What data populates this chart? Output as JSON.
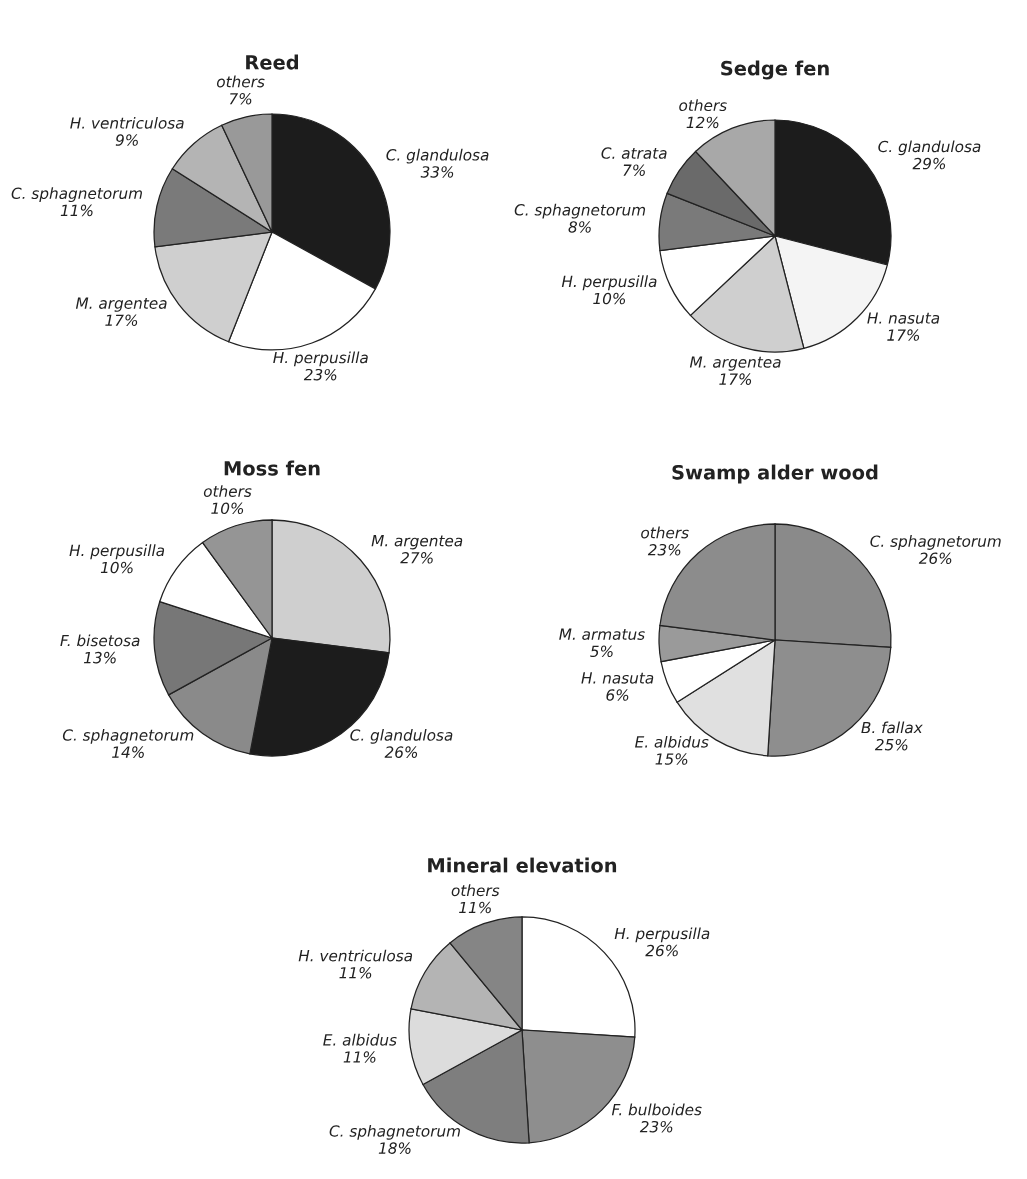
{
  "chart_data": [
    {
      "type": "pie",
      "title": "Reed",
      "categories": [
        "C. glandulosa",
        "H. perpusilla",
        "M. argentea",
        "C. sphagnetorum",
        "H. ventriculosa",
        "others"
      ],
      "values": [
        33,
        23,
        17,
        11,
        9,
        7
      ],
      "value_labels": [
        "33%",
        "23%",
        "17%",
        "11%",
        "9%",
        "7%"
      ],
      "colors": [
        "#1c1c1c",
        "#ffffff",
        "#cfcfcf",
        "#7a7a7a",
        "#b4b4b4",
        "#999999"
      ]
    },
    {
      "type": "pie",
      "title": "Sedge fen",
      "categories": [
        "C. glandulosa",
        "H. nasuta",
        "M. argentea",
        "H. perpusilla",
        "C. sphagnetorum",
        "C. atrata",
        "others"
      ],
      "values": [
        29,
        17,
        17,
        10,
        8,
        7,
        12
      ],
      "value_labels": [
        "29%",
        "17%",
        "17%",
        "10%",
        "8%",
        "7%",
        "12%"
      ],
      "colors": [
        "#1c1c1c",
        "#f4f4f4",
        "#cfcfcf",
        "#ffffff",
        "#7a7a7a",
        "#6a6a6a",
        "#a8a8a8"
      ]
    },
    {
      "type": "pie",
      "title": "Moss fen",
      "categories": [
        "M. argentea",
        "C. glandulosa",
        "C. sphagnetorum",
        "F. bisetosa",
        "H. perpusilla",
        "others"
      ],
      "values": [
        27,
        26,
        14,
        13,
        10,
        10
      ],
      "value_labels": [
        "27%",
        "26%",
        "14%",
        "13%",
        "10%",
        "10%"
      ],
      "colors": [
        "#cfcfcf",
        "#1c1c1c",
        "#8a8a8a",
        "#777777",
        "#ffffff",
        "#959595"
      ]
    },
    {
      "type": "pie",
      "title": "Swamp alder wood",
      "categories": [
        "C. sphagnetorum",
        "B. fallax",
        "E. albidus",
        "H. nasuta",
        "M. armatus",
        "others"
      ],
      "values": [
        26,
        25,
        15,
        6,
        5,
        23
      ],
      "value_labels": [
        "26%",
        "25%",
        "15%",
        "6%",
        "5%",
        "23%"
      ],
      "colors": [
        "#8a8a8a",
        "#8e8e8e",
        "#e0e0e0",
        "#ffffff",
        "#9a9a9a",
        "#8c8c8c"
      ]
    },
    {
      "type": "pie",
      "title": "Mineral elevation",
      "categories": [
        "H. perpusilla",
        "F. bulboides",
        "C. sphagnetorum",
        "E. albidus",
        "H. ventriculosa",
        "others"
      ],
      "values": [
        26,
        23,
        18,
        11,
        11,
        11
      ],
      "value_labels": [
        "26%",
        "23%",
        "18%",
        "11%",
        "11%",
        "11%"
      ],
      "colors": [
        "#ffffff",
        "#8e8e8e",
        "#7e7e7e",
        "#dcdcdc",
        "#b4b4b4",
        "#858585"
      ]
    }
  ]
}
